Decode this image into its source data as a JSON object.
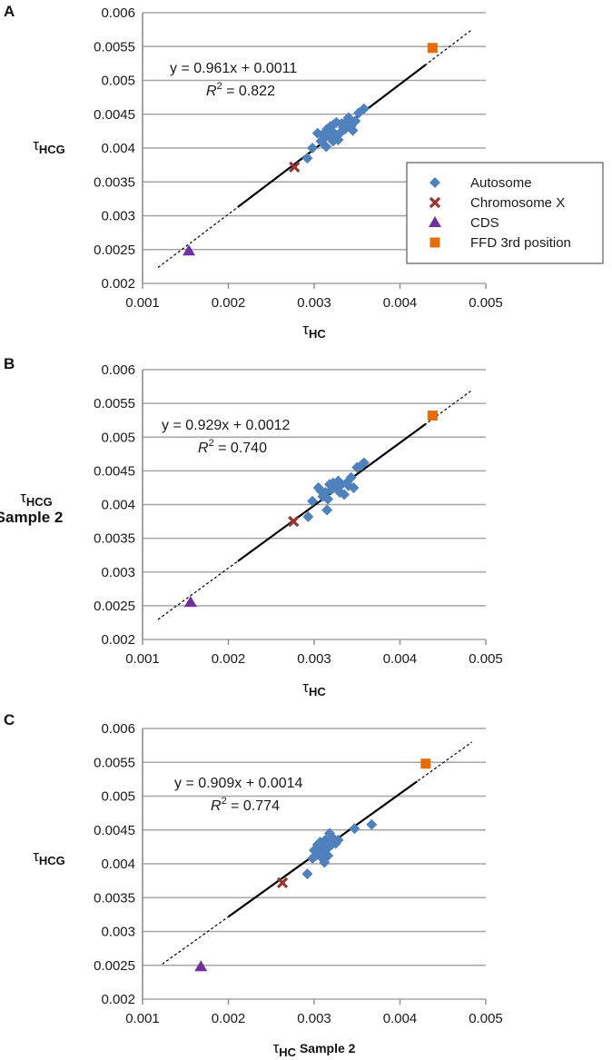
{
  "colors": {
    "autosome": "#4f81bd",
    "chromosome_x": "#943634",
    "cds": "#7030a0",
    "ffd": "#e46c0a",
    "grid": "#a6a6a6",
    "fit": "#000000"
  },
  "legend": {
    "items": [
      {
        "label": "Autosome",
        "marker": "diamond",
        "color_key": "autosome"
      },
      {
        "label": "Chromosome X",
        "marker": "x",
        "color_key": "chromosome_x"
      },
      {
        "label": "CDS",
        "marker": "triangle",
        "color_key": "cds"
      },
      {
        "label": "FFD 3rd position",
        "marker": "square",
        "color_key": "ffd"
      }
    ]
  },
  "chart_data": [
    {
      "panel": "A",
      "type": "scatter",
      "xlabel": {
        "main": "τ",
        "sub": "HC",
        "suffix": ""
      },
      "ylabel": {
        "main": "τ",
        "sub": "HCG",
        "line2": ""
      },
      "xlim": [
        0.001,
        0.005
      ],
      "ylim": [
        0.002,
        0.006
      ],
      "xticks": [
        "0.001",
        "0.002",
        "0.003",
        "0.004",
        "0.005"
      ],
      "yticks": [
        "0.002",
        "0.0025",
        "0.003",
        "0.0035",
        "0.004",
        "0.0045",
        "0.005",
        "0.0055",
        "0.006"
      ],
      "equation": "y = 0.961x + 0.0011",
      "r2": {
        "label": "R",
        "sup": "2",
        "value": " = 0.822"
      },
      "fit": {
        "slope": 0.961,
        "intercept": 0.0011,
        "solid": [
          0.00211,
          0.0043
        ],
        "dashed": [
          0.00118,
          0.00484
        ]
      },
      "series": [
        {
          "name": "Autosome",
          "marker": "diamond",
          "x": [
            0.00292,
            0.00298,
            0.00304,
            0.00308,
            0.0031,
            0.00312,
            0.00314,
            0.00315,
            0.00318,
            0.00319,
            0.0032,
            0.00322,
            0.00323,
            0.00325,
            0.00326,
            0.00328,
            0.0033,
            0.00332,
            0.00334,
            0.00336,
            0.00338,
            0.0034,
            0.00343,
            0.00345,
            0.00348,
            0.00352,
            0.00358
          ],
          "y": [
            0.00385,
            0.004,
            0.00422,
            0.0041,
            0.0042,
            0.00415,
            0.00402,
            0.00428,
            0.00418,
            0.00432,
            0.00425,
            0.0041,
            0.00435,
            0.0042,
            0.00438,
            0.00412,
            0.00422,
            0.00436,
            0.0043,
            0.00428,
            0.0044,
            0.00445,
            0.00432,
            0.00426,
            0.0044,
            0.00452,
            0.00458
          ]
        },
        {
          "name": "Chromosome X",
          "marker": "x",
          "x": [
            0.00277
          ],
          "y": [
            0.00372
          ]
        },
        {
          "name": "CDS",
          "marker": "triangle",
          "x": [
            0.00154
          ],
          "y": [
            0.00248
          ]
        },
        {
          "name": "FFD 3rd position",
          "marker": "square",
          "x": [
            0.00438
          ],
          "y": [
            0.00548
          ]
        }
      ]
    },
    {
      "panel": "B",
      "type": "scatter",
      "xlabel": {
        "main": "τ",
        "sub": "HC",
        "suffix": ""
      },
      "ylabel": {
        "main": "τ",
        "sub": "HCG",
        "line2": "Sample 2"
      },
      "xlim": [
        0.001,
        0.005
      ],
      "ylim": [
        0.002,
        0.006
      ],
      "xticks": [
        "0.001",
        "0.002",
        "0.003",
        "0.004",
        "0.005"
      ],
      "yticks": [
        "0.002",
        "0.0025",
        "0.003",
        "0.0035",
        "0.004",
        "0.0045",
        "0.005",
        "0.0055",
        "0.006"
      ],
      "equation": "y = 0.929x + 0.0012",
      "r2": {
        "label": "R",
        "sup": "2",
        "value": " = 0.740"
      },
      "fit": {
        "slope": 0.929,
        "intercept": 0.0012,
        "solid": [
          0.00211,
          0.0043
        ],
        "dashed": [
          0.00118,
          0.00484
        ]
      },
      "series": [
        {
          "name": "Autosome",
          "marker": "diamond",
          "x": [
            0.00293,
            0.00298,
            0.00305,
            0.00308,
            0.0031,
            0.00313,
            0.00315,
            0.00316,
            0.00318,
            0.0032,
            0.00322,
            0.00325,
            0.00328,
            0.0033,
            0.00332,
            0.00335,
            0.00338,
            0.0034,
            0.00343,
            0.00346,
            0.0035,
            0.00355,
            0.00358
          ],
          "y": [
            0.00382,
            0.00405,
            0.00425,
            0.0042,
            0.00412,
            0.00418,
            0.00392,
            0.00408,
            0.0043,
            0.00422,
            0.00432,
            0.00428,
            0.00435,
            0.00418,
            0.0043,
            0.00415,
            0.00432,
            0.00428,
            0.0044,
            0.00425,
            0.00455,
            0.00458,
            0.00462
          ]
        },
        {
          "name": "Chromosome X",
          "marker": "x",
          "x": [
            0.00276
          ],
          "y": [
            0.00375
          ]
        },
        {
          "name": "CDS",
          "marker": "triangle",
          "x": [
            0.00156
          ],
          "y": [
            0.00255
          ]
        },
        {
          "name": "FFD 3rd position",
          "marker": "square",
          "x": [
            0.00438
          ],
          "y": [
            0.00532
          ]
        }
      ]
    },
    {
      "panel": "C",
      "type": "scatter",
      "xlabel": {
        "main": "τ",
        "sub": "HC",
        "suffix": " Sample 2"
      },
      "ylabel": {
        "main": "τ",
        "sub": "HCG",
        "line2": ""
      },
      "xlim": [
        0.001,
        0.005
      ],
      "ylim": [
        0.002,
        0.006
      ],
      "xticks": [
        "0.001",
        "0.002",
        "0.003",
        "0.004",
        "0.005"
      ],
      "yticks": [
        "0.002",
        "0.0025",
        "0.003",
        "0.0035",
        "0.004",
        "0.0045",
        "0.005",
        "0.0055",
        "0.006"
      ],
      "equation": "y = 0.909x + 0.0014",
      "r2": {
        "label": "R",
        "sup": "2",
        "value": " = 0.774"
      },
      "fit": {
        "slope": 0.909,
        "intercept": 0.0014,
        "solid": [
          0.002,
          0.0042
        ],
        "dashed": [
          0.00123,
          0.00484
        ]
      },
      "series": [
        {
          "name": "Autosome",
          "marker": "diamond",
          "x": [
            0.00292,
            0.00298,
            0.003,
            0.00302,
            0.00304,
            0.00305,
            0.00307,
            0.00308,
            0.0031,
            0.00311,
            0.00312,
            0.00313,
            0.00315,
            0.00316,
            0.00318,
            0.0032,
            0.00322,
            0.00325,
            0.00328,
            0.00347,
            0.00367
          ],
          "y": [
            0.00385,
            0.00408,
            0.0042,
            0.00412,
            0.00428,
            0.00418,
            0.00432,
            0.0041,
            0.00425,
            0.00415,
            0.00402,
            0.00435,
            0.00422,
            0.00412,
            0.00445,
            0.00428,
            0.00438,
            0.0043,
            0.00435,
            0.00452,
            0.00458
          ]
        },
        {
          "name": "Chromosome X",
          "marker": "x",
          "x": [
            0.00263
          ],
          "y": [
            0.00372
          ]
        },
        {
          "name": "CDS",
          "marker": "triangle",
          "x": [
            0.00168
          ],
          "y": [
            0.00248
          ]
        },
        {
          "name": "FFD 3rd position",
          "marker": "square",
          "x": [
            0.0043
          ],
          "y": [
            0.00548
          ]
        }
      ]
    }
  ]
}
